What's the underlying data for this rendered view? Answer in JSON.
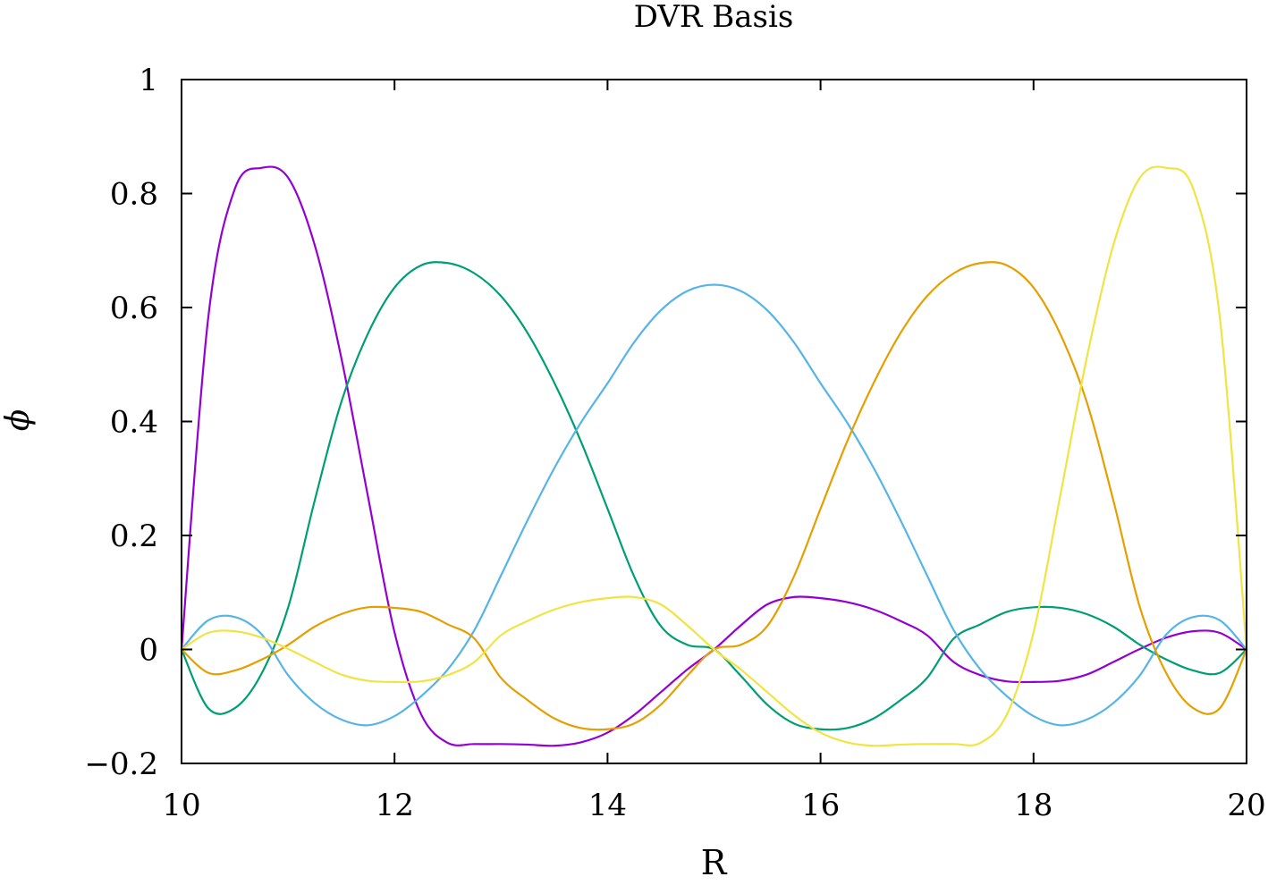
{
  "chart_data": {
    "type": "line",
    "title": "DVR Basis",
    "xlabel": "R",
    "ylabel": "ϕ",
    "xlim": [
      10,
      20
    ],
    "ylim": [
      -0.2,
      1
    ],
    "xticks": [
      10,
      12,
      14,
      16,
      18,
      20
    ],
    "xtick_labels": [
      "10",
      "12",
      "14",
      "16",
      "18",
      "20"
    ],
    "yticks": [
      -0.2,
      0,
      0.2,
      0.4,
      0.6,
      0.8,
      1
    ],
    "ytick_labels": [
      "−0.2",
      "0",
      "0.2",
      "0.4",
      "0.6",
      "0.8",
      "1"
    ],
    "grid": false,
    "legend": "none",
    "x": [
      10,
      10.25,
      10.5,
      10.75,
      11,
      11.25,
      11.5,
      11.75,
      12,
      12.25,
      12.5,
      12.75,
      13,
      13.25,
      13.5,
      13.75,
      14,
      14.25,
      14.5,
      14.75,
      15,
      15.25,
      15.5,
      15.75,
      16,
      16.25,
      16.5,
      16.75,
      17,
      17.25,
      17.5,
      17.75,
      18,
      18.25,
      18.5,
      18.75,
      19,
      19.25,
      19.5,
      19.75,
      20
    ],
    "series": [
      {
        "color": "#9400d3",
        "values": [
          0,
          0.581,
          0.808,
          0.845,
          0.828,
          0.71,
          0.512,
          0.269,
          0.03,
          -0.114,
          -0.164,
          -0.166,
          -0.166,
          -0.167,
          -0.169,
          -0.163,
          -0.146,
          -0.115,
          -0.075,
          -0.035,
          0,
          0.042,
          0.079,
          0.092,
          0.09,
          0.083,
          0.07,
          0.05,
          0.025,
          -0.022,
          -0.045,
          -0.056,
          -0.057,
          -0.055,
          -0.044,
          -0.022,
          0.001,
          0.021,
          0.032,
          0.029,
          0
        ]
      },
      {
        "color": "#009e73",
        "values": [
          0,
          -0.103,
          -0.103,
          -0.043,
          0.073,
          0.261,
          0.434,
          0.554,
          0.635,
          0.674,
          0.678,
          0.66,
          0.62,
          0.555,
          0.468,
          0.365,
          0.247,
          0.128,
          0.041,
          0.008,
          0,
          -0.046,
          -0.097,
          -0.13,
          -0.14,
          -0.138,
          -0.121,
          -0.089,
          -0.05,
          0.019,
          0.044,
          0.066,
          0.074,
          0.073,
          0.062,
          0.04,
          0.008,
          -0.018,
          -0.037,
          -0.041,
          0
        ]
      },
      {
        "color": "#56b4e9",
        "values": [
          0,
          0.051,
          0.057,
          0.027,
          -0.045,
          -0.094,
          -0.123,
          -0.133,
          -0.117,
          -0.082,
          -0.035,
          0.034,
          0.13,
          0.227,
          0.318,
          0.398,
          0.467,
          0.539,
          0.595,
          0.629,
          0.64,
          0.629,
          0.595,
          0.539,
          0.467,
          0.398,
          0.318,
          0.227,
          0.13,
          0.034,
          -0.035,
          -0.082,
          -0.117,
          -0.133,
          -0.123,
          -0.094,
          -0.045,
          0.027,
          0.057,
          0.051,
          0
        ]
      },
      {
        "color": "#e69f00",
        "values": [
          0,
          -0.041,
          -0.037,
          -0.018,
          0.008,
          0.04,
          0.062,
          0.074,
          0.073,
          0.066,
          0.044,
          0.019,
          -0.05,
          -0.089,
          -0.121,
          -0.138,
          -0.14,
          -0.13,
          -0.097,
          -0.046,
          0,
          0.008,
          0.041,
          0.128,
          0.247,
          0.365,
          0.468,
          0.555,
          0.62,
          0.66,
          0.678,
          0.674,
          0.635,
          0.554,
          0.434,
          0.261,
          0.073,
          -0.043,
          -0.103,
          -0.103,
          0
        ]
      },
      {
        "color": "#f0e442",
        "values": [
          0,
          0.029,
          0.032,
          0.021,
          0.001,
          -0.022,
          -0.044,
          -0.055,
          -0.057,
          -0.056,
          -0.045,
          -0.022,
          0.025,
          0.05,
          0.07,
          0.083,
          0.09,
          0.092,
          0.079,
          0.042,
          0,
          -0.035,
          -0.075,
          -0.115,
          -0.146,
          -0.163,
          -0.169,
          -0.167,
          -0.166,
          -0.166,
          -0.164,
          -0.114,
          0.03,
          0.269,
          0.512,
          0.71,
          0.828,
          0.845,
          0.808,
          0.581,
          0
        ]
      }
    ]
  }
}
